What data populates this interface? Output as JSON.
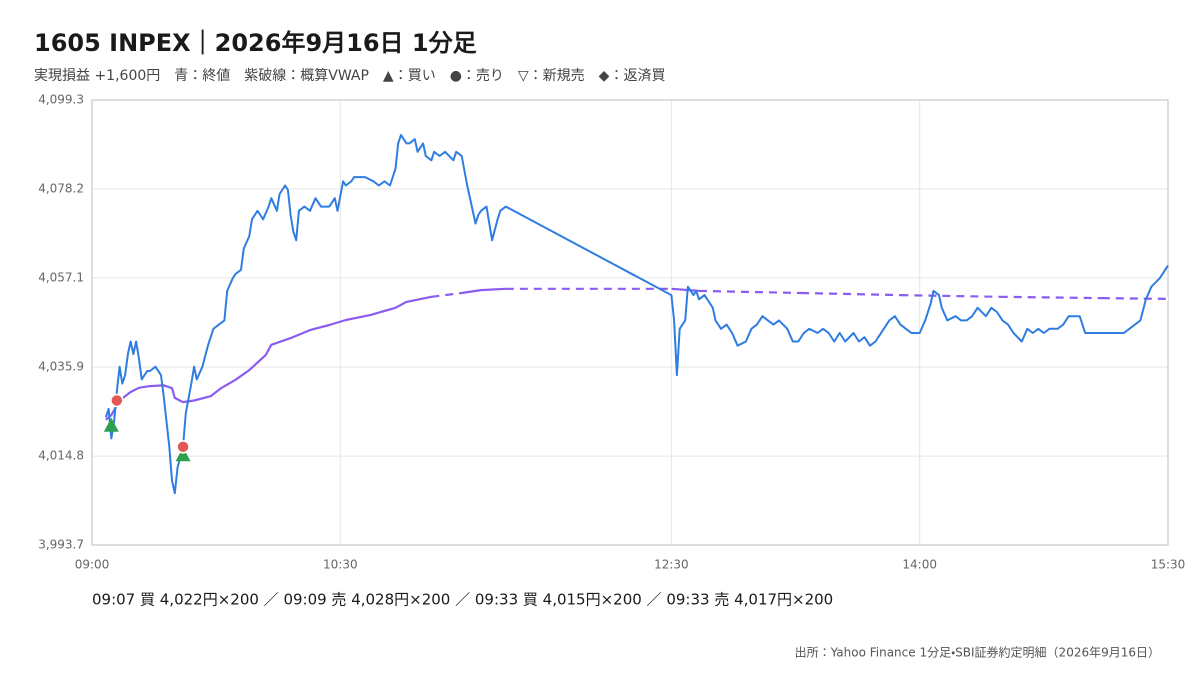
{
  "chart_data": {
    "type": "line",
    "title": "1605 INPEX｜2026年9月16日 1分足",
    "subtitle": "実現損益 +1,600円　青：終値　紫破線：概算VWAP　▲：買い　●：売り　▽：新規売　◆：返済買",
    "trades_text": "09:07 買 4,022円×200 ／ 09:09 売 4,028円×200 ／ 09:33 買 4,015円×200 ／ 09:33 売 4,017円×200",
    "source": "出所：Yahoo Finance 1分足・SBI証券約定明細（2026年9月16日）",
    "xlim": [
      "09:00",
      "15:30"
    ],
    "xticks": [
      "09:00",
      "10:30",
      "12:30",
      "14:00",
      "15:30"
    ],
    "ylim": [
      3993.7,
      4099.3
    ],
    "yticks": [
      {
        "value": 3993.7,
        "label": "3,993.7"
      },
      {
        "value": 4014.8,
        "label": "4,014.8"
      },
      {
        "value": 4035.9,
        "label": "4,035.9"
      },
      {
        "value": 4057.1,
        "label": "4,057.1"
      },
      {
        "value": 4078.2,
        "label": "4,078.2"
      },
      {
        "value": 4099.3,
        "label": "4,099.3"
      }
    ],
    "grid": true,
    "series": [
      {
        "color": "#2f7de1",
        "x": [
          "09:05",
          "09:06",
          "09:07",
          "09:08",
          "09:09",
          "09:10",
          "09:11",
          "09:12",
          "09:13",
          "09:14",
          "09:15",
          "09:16",
          "09:17",
          "09:18",
          "09:20",
          "09:21",
          "09:23",
          "09:25",
          "09:26",
          "09:28",
          "09:29",
          "09:30",
          "09:31",
          "09:33",
          "09:34",
          "09:36",
          "09:37",
          "09:38",
          "09:40",
          "09:42",
          "09:44",
          "09:46",
          "09:48",
          "09:49",
          "09:51",
          "09:52",
          "09:54",
          "09:55",
          "09:57",
          "09:58",
          "10:00",
          "10:01",
          "10:02",
          "10:04",
          "10:05",
          "10:07",
          "10:08",
          "10:10",
          "10:11",
          "10:12",
          "10:13",
          "10:14",
          "10:15",
          "10:17",
          "10:19",
          "10:21",
          "10:23",
          "10:26",
          "10:28",
          "10:29",
          "10:31",
          "10:32",
          "10:34",
          "10:35",
          "10:37",
          "10:39",
          "10:42",
          "10:44",
          "10:46",
          "10:48",
          "10:50",
          "10:51",
          "10:52",
          "10:54",
          "10:55",
          "10:57",
          "10:58",
          "11:00",
          "11:01",
          "11:03",
          "11:04",
          "11:06",
          "11:08",
          "11:11",
          "11:12",
          "11:14",
          "11:16",
          "11:17",
          "11:19",
          "11:20",
          "11:21",
          "11:23",
          "11:24",
          "11:25",
          "11:27",
          "11:28",
          "11:30",
          "12:30",
          "12:31",
          "12:32",
          "12:33",
          "12:35",
          "12:36",
          "12:38",
          "12:39",
          "12:40",
          "12:42",
          "12:43",
          "12:45",
          "12:46",
          "12:48",
          "12:50",
          "12:52",
          "12:54",
          "12:57",
          "12:59",
          "13:01",
          "13:03",
          "13:05",
          "13:07",
          "13:09",
          "13:12",
          "13:14",
          "13:16",
          "13:18",
          "13:20",
          "13:23",
          "13:25",
          "13:27",
          "13:29",
          "13:31",
          "13:33",
          "13:36",
          "13:38",
          "13:40",
          "13:42",
          "13:44",
          "13:47",
          "13:49",
          "13:51",
          "13:53",
          "13:55",
          "13:57",
          "14:00",
          "14:02",
          "14:04",
          "14:05",
          "14:07",
          "14:08",
          "14:10",
          "14:13",
          "14:15",
          "14:17",
          "14:19",
          "14:21",
          "14:24",
          "14:26",
          "14:28",
          "14:30",
          "14:32",
          "14:34",
          "14:37",
          "14:39",
          "14:41",
          "14:43",
          "14:45",
          "14:47",
          "14:50",
          "14:52",
          "14:54",
          "14:56",
          "14:58",
          "15:00",
          "15:03",
          "15:05",
          "15:07",
          "15:09",
          "15:11",
          "15:14",
          "15:16",
          "15:18",
          "15:20",
          "15:22",
          "15:24",
          "15:27",
          "15:29",
          "15:30"
        ],
        "values": [
          4024,
          4026,
          4019,
          4023,
          4030,
          4036,
          4032,
          4034,
          4039,
          4042,
          4039,
          4042,
          4038,
          4033,
          4035,
          4035,
          4036,
          4034,
          4029,
          4017,
          4009,
          4006,
          4012,
          4017,
          4025,
          4032,
          4036,
          4033,
          4036,
          4041,
          4045,
          4046,
          4047,
          4054,
          4057,
          4058,
          4059,
          4064,
          4067,
          4071,
          4073,
          4072,
          4071,
          4074,
          4076,
          4073,
          4077,
          4079,
          4078,
          4072,
          4068,
          4066,
          4073,
          4074,
          4073,
          4076,
          4074,
          4074,
          4076,
          4073,
          4080,
          4079,
          4080,
          4081,
          4081,
          4081,
          4080,
          4079,
          4080,
          4079,
          4083,
          4089,
          4091,
          4089,
          4089,
          4090,
          4087,
          4089,
          4086,
          4085,
          4087,
          4086,
          4087,
          4085,
          4087,
          4086,
          4079,
          4076,
          4070,
          4072,
          4073,
          4074,
          4070,
          4066,
          4071,
          4073,
          4074,
          4053,
          4047,
          4034,
          4045,
          4047,
          4055,
          4053,
          4054,
          4052,
          4053,
          4052,
          4050,
          4047,
          4045,
          4046,
          4044,
          4041,
          4042,
          4045,
          4046,
          4048,
          4047,
          4046,
          4047,
          4045,
          4042,
          4042,
          4044,
          4045,
          4044,
          4045,
          4044,
          4042,
          4044,
          4042,
          4044,
          4042,
          4043,
          4041,
          4042,
          4045,
          4047,
          4048,
          4046,
          4045,
          4044,
          4044,
          4047,
          4051,
          4054,
          4053,
          4050,
          4047,
          4048,
          4047,
          4047,
          4048,
          4050,
          4048,
          4050,
          4049,
          4047,
          4046,
          4044,
          4042,
          4045,
          4044,
          4045,
          4044,
          4045,
          4045,
          4046,
          4048,
          4048,
          4048,
          4044,
          4044,
          4044,
          4044,
          4044,
          4044,
          4044,
          4045,
          4046,
          4047,
          4052,
          4055,
          4057,
          4059,
          4060
        ]
      },
      {
        "color": "#8a5cf0",
        "x": [
          "09:05",
          "09:07",
          "09:10",
          "09:14",
          "09:17",
          "09:21",
          "09:26",
          "09:29",
          "09:30",
          "09:33",
          "09:37",
          "09:43",
          "09:47",
          "09:52",
          "09:57",
          "10:03",
          "10:05",
          "10:12",
          "10:19",
          "10:26",
          "10:32",
          "10:41",
          "10:50",
          "10:54",
          "11:03",
          "11:14",
          "11:21",
          "11:30",
          "12:30",
          "12:40",
          "13:17",
          "13:53",
          "14:29",
          "15:06",
          "15:30"
        ],
        "values": [
          4023.4,
          4024.5,
          4028,
          4030,
          4031,
          4031.4,
          4031.6,
          4030.9,
          4028.6,
          4027.6,
          4028,
          4029,
          4031,
          4032.9,
          4035.2,
          4038.8,
          4041.2,
          4042.8,
          4044.7,
          4045.9,
          4047.1,
          4048.3,
          4050,
          4051.4,
          4052.6,
          4053.5,
          4054.2,
          4054.5,
          4054.5,
          4054,
          4053.5,
          4053,
          4052.6,
          4052.3,
          4052.1
        ]
      }
    ],
    "markers": [
      {
        "x": "09:07",
        "value": 4022,
        "shape": "triangle",
        "color": "#2e9e4f"
      },
      {
        "x": "09:09",
        "value": 4028,
        "shape": "circle",
        "color": "#e35757"
      },
      {
        "x": "09:33",
        "value": 4015,
        "shape": "triangle",
        "color": "#2e9e4f"
      },
      {
        "x": "09:33",
        "value": 4017,
        "shape": "circle",
        "color": "#e35757"
      }
    ]
  }
}
